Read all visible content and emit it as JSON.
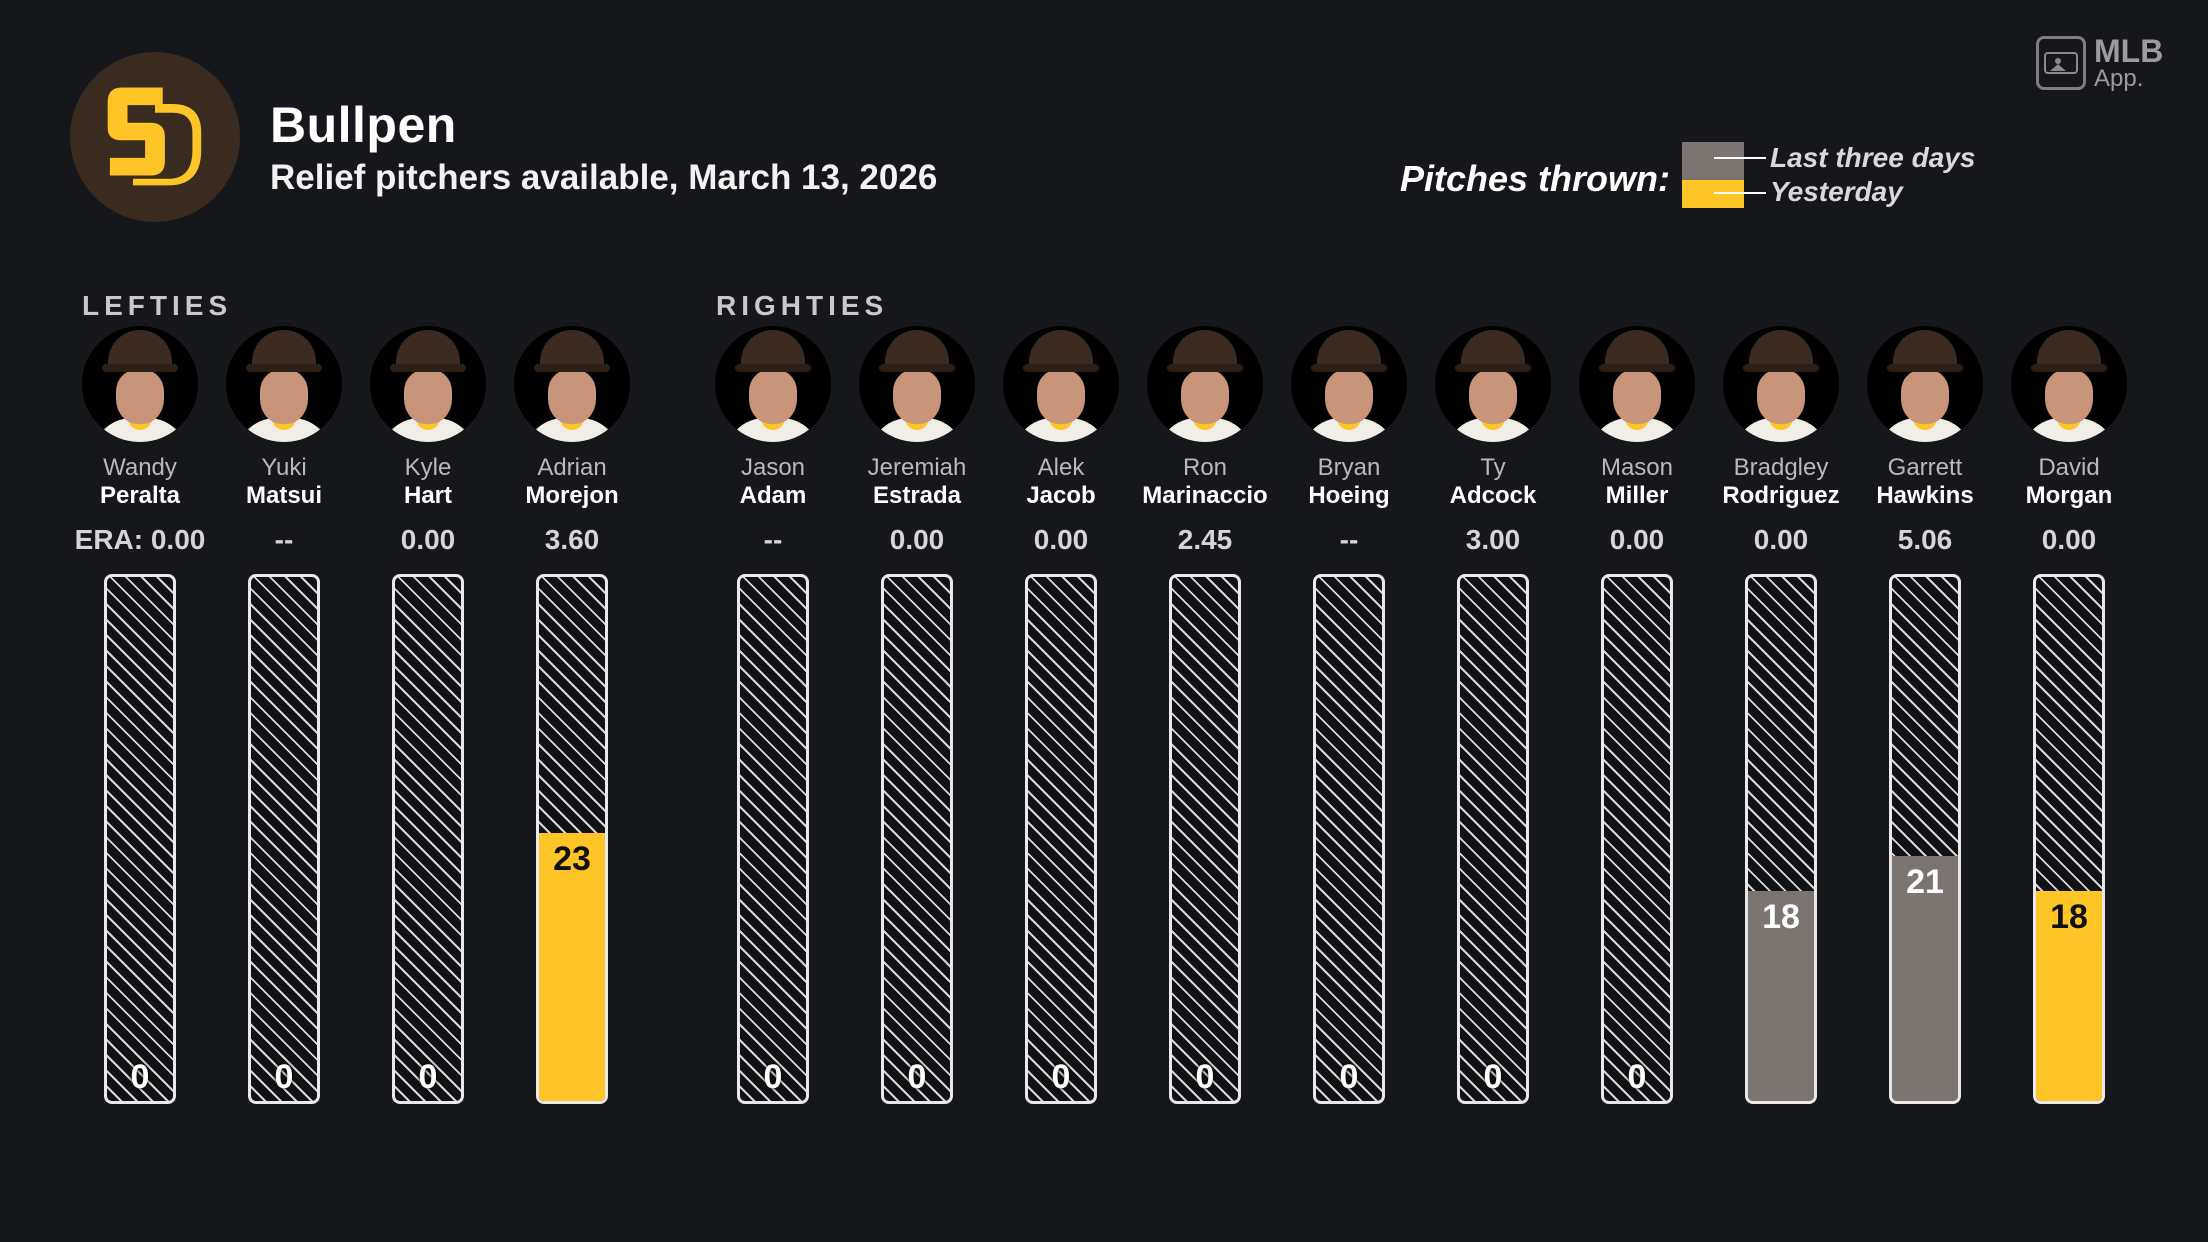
{
  "header": {
    "title": "Bullpen",
    "subtitle": "Relief pitchers available, March 13, 2026",
    "team_logo_text": "SD"
  },
  "badge": {
    "line1": "MLB",
    "line2": "App."
  },
  "legend": {
    "title": "Pitches thrown:",
    "last_three_days": "Last three days",
    "yesterday": "Yesterday"
  },
  "groups": {
    "lefties": "LEFTIES",
    "righties": "RIGHTIES"
  },
  "colors": {
    "background": "#16171b",
    "yesterday": "#ffc425",
    "last_three_days": "#7c7471",
    "brown": "#3b2a1f"
  },
  "pitchers": [
    {
      "first": "Wandy",
      "last": "Peralta",
      "era": "ERA: 0.00",
      "pitches": 0,
      "type": "none",
      "group": "lefties"
    },
    {
      "first": "Yuki",
      "last": "Matsui",
      "era": "--",
      "pitches": 0,
      "type": "none",
      "group": "lefties"
    },
    {
      "first": "Kyle",
      "last": "Hart",
      "era": "0.00",
      "pitches": 0,
      "type": "none",
      "group": "lefties"
    },
    {
      "first": "Adrian",
      "last": "Morejon",
      "era": "3.60",
      "pitches": 23,
      "type": "yesterday",
      "group": "lefties"
    },
    {
      "first": "Jason",
      "last": "Adam",
      "era": "--",
      "pitches": 0,
      "type": "none",
      "group": "righties"
    },
    {
      "first": "Jeremiah",
      "last": "Estrada",
      "era": "0.00",
      "pitches": 0,
      "type": "none",
      "group": "righties"
    },
    {
      "first": "Alek",
      "last": "Jacob",
      "era": "0.00",
      "pitches": 0,
      "type": "none",
      "group": "righties"
    },
    {
      "first": "Ron",
      "last": "Marinaccio",
      "era": "2.45",
      "pitches": 0,
      "type": "none",
      "group": "righties"
    },
    {
      "first": "Bryan",
      "last": "Hoeing",
      "era": "--",
      "pitches": 0,
      "type": "none",
      "group": "righties"
    },
    {
      "first": "Ty",
      "last": "Adcock",
      "era": "3.00",
      "pitches": 0,
      "type": "none",
      "group": "righties"
    },
    {
      "first": "Mason",
      "last": "Miller",
      "era": "0.00",
      "pitches": 0,
      "type": "none",
      "group": "righties"
    },
    {
      "first": "Bradgley",
      "last": "Rodriguez",
      "era": "0.00",
      "pitches": 18,
      "type": "last_three_days",
      "group": "righties"
    },
    {
      "first": "Garrett",
      "last": "Hawkins",
      "era": "5.06",
      "pitches": 21,
      "type": "last_three_days",
      "group": "righties"
    },
    {
      "first": "David",
      "last": "Morgan",
      "era": "0.00",
      "pitches": 18,
      "type": "yesterday",
      "group": "righties"
    }
  ],
  "chart_data": {
    "type": "bar",
    "title": "Bullpen",
    "subtitle": "Relief pitchers available, March 13, 2026",
    "categories": [
      "Wandy Peralta",
      "Yuki Matsui",
      "Kyle Hart",
      "Adrian Morejon",
      "Jason Adam",
      "Jeremiah Estrada",
      "Alek Jacob",
      "Ron Marinaccio",
      "Bryan Hoeing",
      "Ty Adcock",
      "Mason Miller",
      "Bradgley Rodriguez",
      "Garrett Hawkins",
      "David Morgan"
    ],
    "values": [
      0,
      0,
      0,
      23,
      0,
      0,
      0,
      0,
      0,
      0,
      0,
      18,
      21,
      18
    ],
    "series": [
      {
        "name": "Yesterday",
        "values": [
          0,
          0,
          0,
          23,
          0,
          0,
          0,
          0,
          0,
          0,
          0,
          0,
          0,
          18
        ]
      },
      {
        "name": "Last three days",
        "values": [
          0,
          0,
          0,
          0,
          0,
          0,
          0,
          0,
          0,
          0,
          0,
          18,
          21,
          0
        ]
      }
    ],
    "ylim": [
      0,
      45
    ],
    "legend": "top-right",
    "grid": false
  }
}
